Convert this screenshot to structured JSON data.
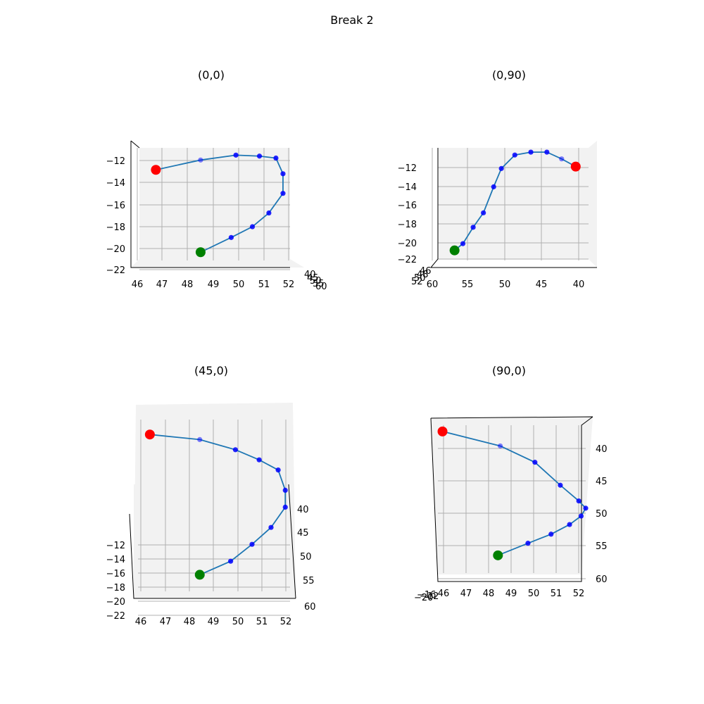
{
  "figure": {
    "title": "Break 2"
  },
  "colors": {
    "line": "#1f77b4",
    "marker": "#0000ff",
    "start": "#ff0000",
    "end": "#008000"
  },
  "chart_data": [
    {
      "type": "line3d",
      "title": "(0,0)",
      "x_ticks": [
        "46",
        "47",
        "48",
        "49",
        "50",
        "51",
        "52"
      ],
      "y_ticks": [
        "−12",
        "−14",
        "−16",
        "−18",
        "−20",
        "−22"
      ],
      "depth_ticks": [
        "40",
        "45",
        "50",
        "55",
        "60"
      ],
      "xlim": [
        45.8,
        52.2
      ],
      "ylim": [
        -22,
        -10.8
      ],
      "points_x": [
        46.5,
        48.4,
        49.9,
        50.9,
        51.6,
        51.9,
        51.9,
        51.3,
        50.6,
        49.7,
        48.4
      ],
      "points_y": [
        -12.9,
        -11.9,
        -11.4,
        -11.5,
        -11.7,
        -13.3,
        -15.3,
        -17.3,
        -18.7,
        -19.8,
        -21.3
      ]
    },
    {
      "type": "line3d",
      "title": "(0,90)",
      "x_ticks": [
        "60",
        "55",
        "50",
        "45",
        "40"
      ],
      "y_ticks": [
        "−12",
        "−14",
        "−16",
        "−18",
        "−20",
        "−22"
      ],
      "depth_ticks": [
        "46",
        "48",
        "50",
        "52"
      ],
      "xlim": [
        61.5,
        38.0
      ],
      "ylim": [
        -22.2,
        -10.8
      ],
      "points_x": [
        40.0,
        42.2,
        44.5,
        47.0,
        49.5,
        51.6,
        52.8,
        54.4,
        56.0,
        57.6,
        58.9
      ],
      "points_y": [
        -12.6,
        -11.8,
        -11.1,
        -11.1,
        -11.4,
        -12.8,
        -14.7,
        -17.4,
        -18.9,
        -20.6,
        -21.3
      ]
    },
    {
      "type": "line3d",
      "title": "(45,0)",
      "x_ticks": [
        "46",
        "47",
        "48",
        "49",
        "50",
        "51",
        "52"
      ],
      "y_ticks": [
        "−12",
        "−14",
        "−16",
        "−18",
        "−20",
        "−22"
      ],
      "depth_ticks": [
        "40",
        "45",
        "50",
        "55",
        "60"
      ],
      "xlim": [
        45.8,
        52.2
      ],
      "ylim": [
        0,
        1
      ],
      "points_x": [
        46.3,
        48.4,
        49.9,
        50.9,
        51.7,
        52.0,
        52.0,
        51.4,
        50.6,
        49.7,
        48.4
      ],
      "points_y": [
        0.92,
        0.89,
        0.83,
        0.77,
        0.71,
        0.59,
        0.49,
        0.37,
        0.27,
        0.17,
        0.09
      ]
    },
    {
      "type": "line3d",
      "title": "(90,0)",
      "x_ticks": [
        "46",
        "47",
        "48",
        "49",
        "50",
        "51",
        "52"
      ],
      "y_ticks": [
        "40",
        "45",
        "50",
        "55",
        "60"
      ],
      "depth_ticks": [
        "−12",
        "−16",
        "−20"
      ],
      "xlim": [
        45.8,
        52.2
      ],
      "ylim": [
        61.5,
        37.5
      ],
      "points_x": [
        46.0,
        48.5,
        50.0,
        51.1,
        51.9,
        52.2,
        52.0,
        51.5,
        50.7,
        49.7,
        48.4
      ],
      "points_y": [
        38.3,
        40.7,
        43.4,
        47.2,
        49.8,
        51.0,
        52.3,
        53.7,
        55.3,
        56.8,
        58.8
      ]
    }
  ]
}
